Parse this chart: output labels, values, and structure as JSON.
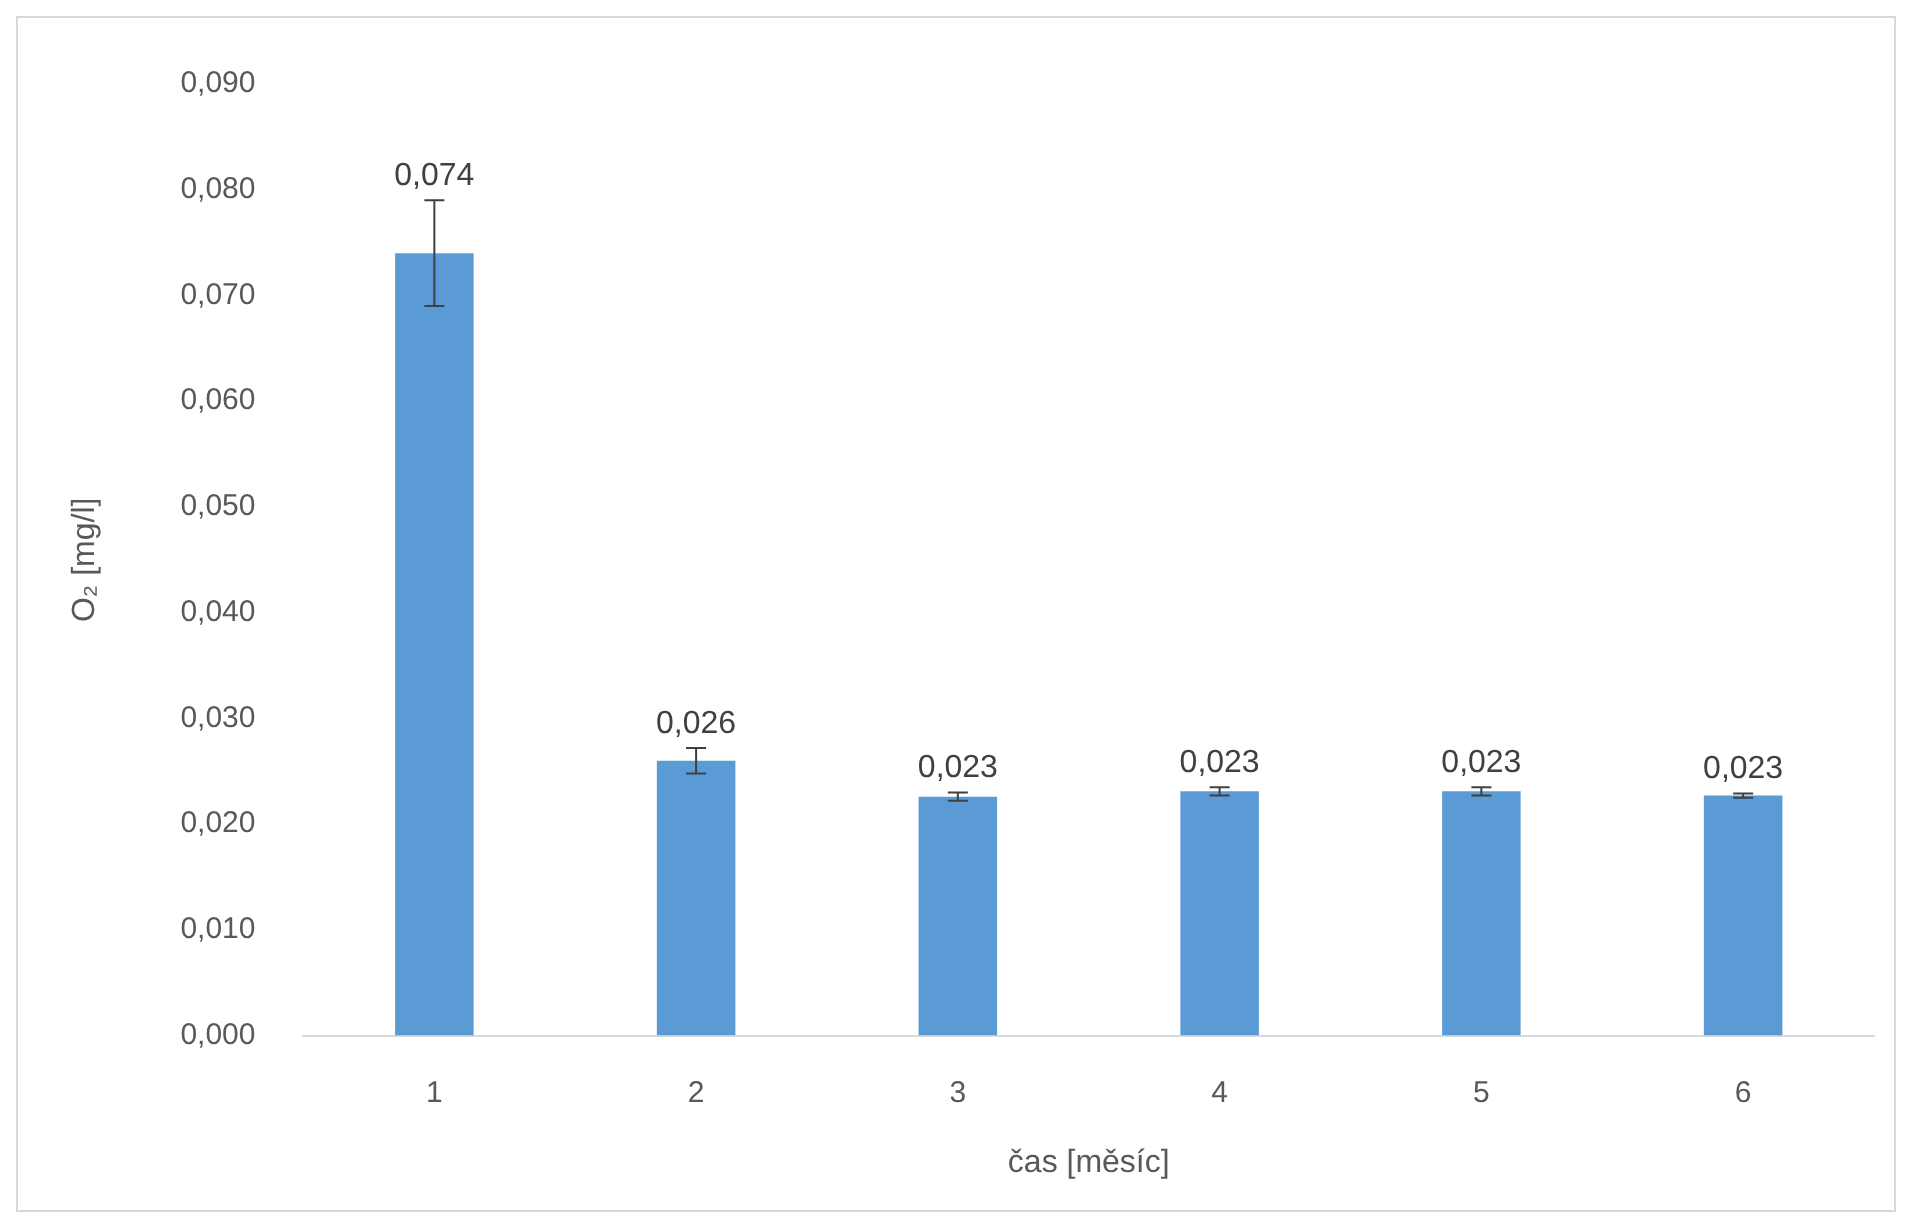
{
  "chart_data": {
    "type": "bar",
    "xlabel": "čas [měsíc]",
    "ylabel": "O₂ [mg/l]",
    "categories": [
      "1",
      "2",
      "3",
      "4",
      "5",
      "6"
    ],
    "values": [
      0.074,
      0.026,
      0.0226,
      0.0231,
      0.0231,
      0.0227
    ],
    "errors": [
      0.005,
      0.0012,
      0.0004,
      0.0004,
      0.0004,
      0.0002
    ],
    "value_labels": [
      "0,074",
      "0,026",
      "0,023",
      "0,023",
      "0,023",
      "0,023"
    ],
    "color": "#5b9bd5",
    "ylim": [
      0,
      0.09
    ],
    "yticks": [
      {
        "value": 0,
        "label": "0,000"
      },
      {
        "value": 0.01,
        "label": "0,010"
      },
      {
        "value": 0.02,
        "label": "0,020"
      },
      {
        "value": 0.03,
        "label": "0,030"
      },
      {
        "value": 0.04,
        "label": "0,040"
      },
      {
        "value": 0.05,
        "label": "0,050"
      },
      {
        "value": 0.06,
        "label": "0,060"
      },
      {
        "value": 0.07,
        "label": "0,070"
      },
      {
        "value": 0.08,
        "label": "0,080"
      },
      {
        "value": 0.09,
        "label": "0,090"
      }
    ],
    "grid": false,
    "legend": false
  }
}
